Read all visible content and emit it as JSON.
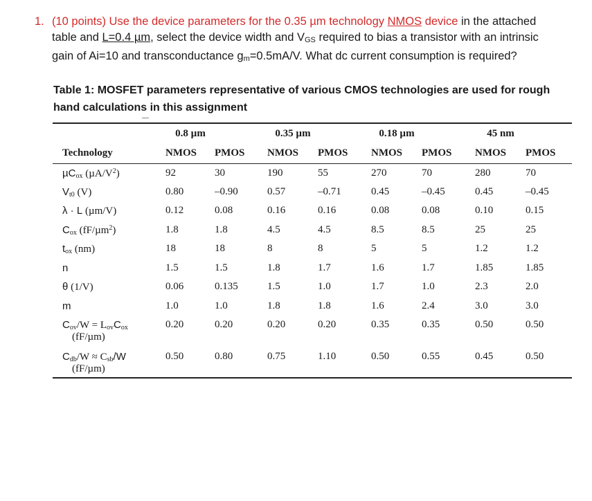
{
  "question": {
    "number": "1.",
    "points": "(10 points) Use the device parameters for the 0.35 µm technology",
    "nmos_link": "NMOS",
    "after_link": "device",
    "line1_end": "in the attached",
    "line2_start": "table and",
    "l_value": "L=0.4 µm",
    "line2_end": ", select the device width and V",
    "vgs_sub": "GS",
    "line2_tail": "required to bias a transistor with an intrinsic",
    "line3_start": "gain of Ai=10 and transconductance g",
    "gm_sub": "m",
    "line3_end": "=0.5mA/V. What dc current consumption is required?"
  },
  "caption": {
    "line1": "Table 1: MOSFET parameters representative of various CMOS technologies are used for rough",
    "line2": "hand calculations in this assignment"
  },
  "table": {
    "technologies": [
      "0.8 µm",
      "0.35 µm",
      "0.18 µm",
      "45 nm"
    ],
    "header_label": "Technology",
    "types": [
      "NMOS",
      "PMOS",
      "NMOS",
      "PMOS",
      "NMOS",
      "PMOS",
      "NMOS",
      "PMOS"
    ],
    "rows": [
      {
        "label_main": "µC",
        "label_sub": "ox",
        "label_tail": " (µA/V",
        "label_sup": "2",
        "label_end": ")",
        "values": [
          "92",
          "30",
          "190",
          "55",
          "270",
          "70",
          "280",
          "70"
        ]
      },
      {
        "label_main": "V",
        "label_sub": "t0",
        "label_tail": " (V)",
        "values": [
          "0.80",
          "–0.90",
          "0.57",
          "–0.71",
          "0.45",
          "–0.45",
          "0.45",
          "–0.45"
        ]
      },
      {
        "label_main": "λ · L",
        "label_tail": " (µm/V)",
        "values": [
          "0.12",
          "0.08",
          "0.16",
          "0.16",
          "0.08",
          "0.08",
          "0.10",
          "0.15"
        ]
      },
      {
        "label_main": "C",
        "label_sub": "ox",
        "label_tail": " (fF/µm",
        "label_sup": "2",
        "label_end": ")",
        "values": [
          "1.8",
          "1.8",
          "4.5",
          "4.5",
          "8.5",
          "8.5",
          "25",
          "25"
        ]
      },
      {
        "label_main": "t",
        "label_sub": "ox",
        "label_tail": " (nm)",
        "values": [
          "18",
          "18",
          "8",
          "8",
          "5",
          "5",
          "1.2",
          "1.2"
        ]
      },
      {
        "label_main": "n",
        "values": [
          "1.5",
          "1.5",
          "1.8",
          "1.7",
          "1.6",
          "1.7",
          "1.85",
          "1.85"
        ]
      },
      {
        "label_main": "θ",
        "label_tail": " (1/V)",
        "values": [
          "0.06",
          "0.135",
          "1.5",
          "1.0",
          "1.7",
          "1.0",
          "2.3",
          "2.0"
        ]
      },
      {
        "label_main": "m",
        "values": [
          "1.0",
          "1.0",
          "1.8",
          "1.8",
          "1.6",
          "2.4",
          "3.0",
          "3.0"
        ]
      },
      {
        "label_main": "C",
        "label_sub": "ov",
        "label_tail": "/W = L",
        "label_sub2": "ov",
        "label_tail2": "C",
        "label_sub3": "ox",
        "label_line2": "(fF/µm)",
        "values": [
          "0.20",
          "0.20",
          "0.20",
          "0.20",
          "0.35",
          "0.35",
          "0.50",
          "0.50"
        ]
      },
      {
        "label_main": "C",
        "label_sub": "db",
        "label_tail": "/W ≈ C",
        "label_sub2": "sb",
        "label_tail2": "/W",
        "label_line2": "(fF/µm)",
        "values": [
          "0.50",
          "0.80",
          "0.75",
          "1.10",
          "0.50",
          "0.55",
          "0.45",
          "0.50"
        ]
      }
    ]
  }
}
